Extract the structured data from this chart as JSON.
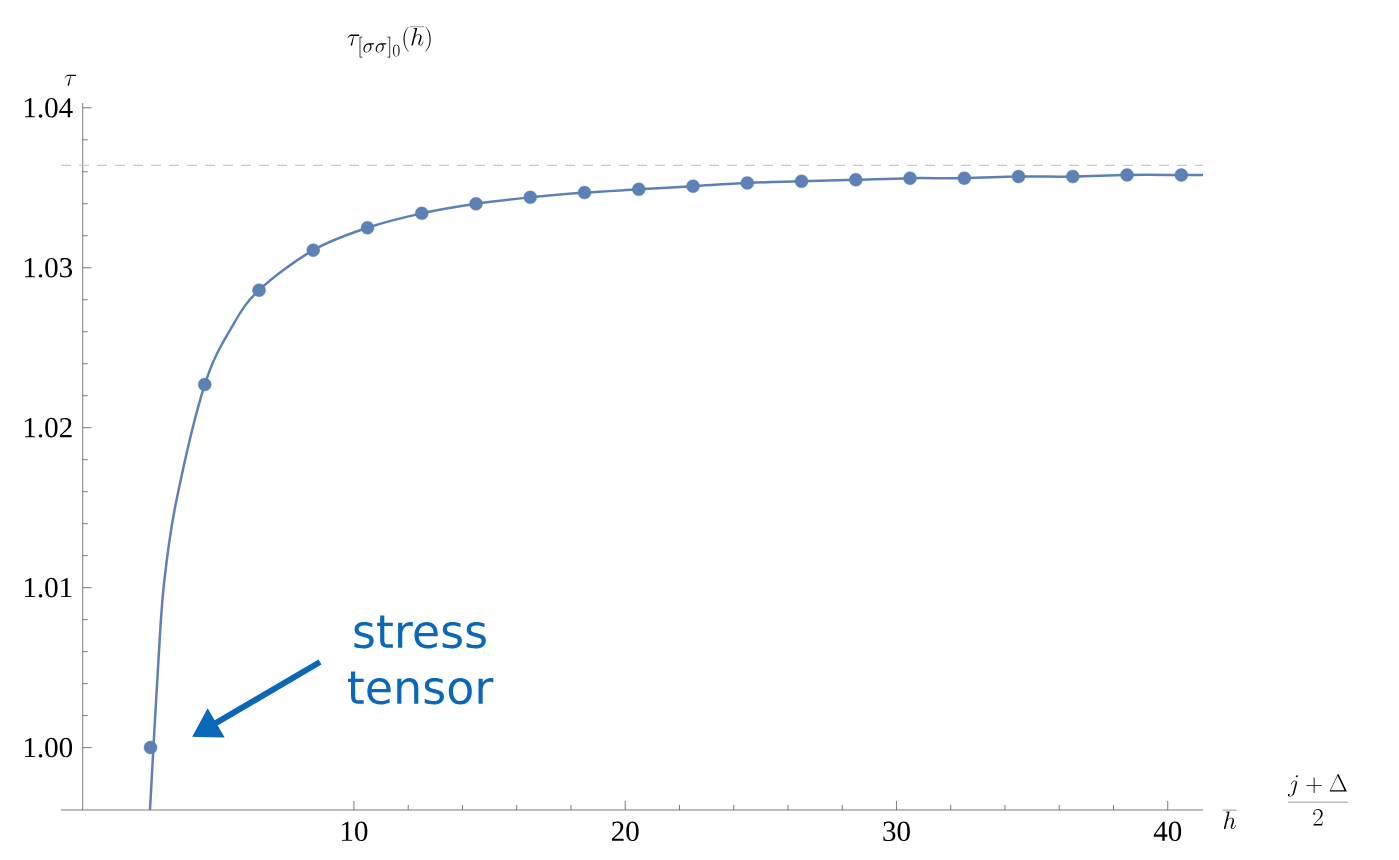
{
  "chart_data": {
    "type": "scatter",
    "title": "\\tau_{[\\sigma\\sigma]_0}(\\overline{h})",
    "ylabel": "\\tau",
    "xlabel": "\\overline{h}",
    "x2label": "\\frac{j+\\Delta}{2}",
    "annotations": [
      "stress tensor"
    ],
    "xlim": [
      -0.8,
      41.3
    ],
    "ylim": [
      0.9961,
      1.0403
    ],
    "xticks": [
      10,
      20,
      30,
      40
    ],
    "yticks": [
      {
        "value": 1.0,
        "label": "1.00"
      },
      {
        "value": 1.01,
        "label": "1.01"
      },
      {
        "value": 1.02,
        "label": "1.02"
      },
      {
        "value": 1.03,
        "label": "1.03"
      },
      {
        "value": 1.04,
        "label": "1.04"
      }
    ],
    "ref_lines": [
      {
        "axis": "y",
        "value": 1.0364,
        "color": "#cccccc",
        "line_style": "dashed"
      }
    ],
    "series": [
      {
        "type": "line",
        "color": "#5e81b5",
        "x": [
          2.48,
          2.78,
          3.0,
          3.46,
          4.5,
          5.5,
          6.5,
          8.5,
          10.5,
          12.5,
          14.5,
          16.5,
          18.5,
          20.5,
          22.5,
          24.5,
          26.5,
          28.5,
          30.5,
          32.5,
          34.5,
          36.5,
          38.5,
          40.5,
          41.3
        ],
        "values": [
          0.9961,
          1.0051,
          1.0103,
          1.0155,
          1.0227,
          1.0263,
          1.0286,
          1.0311,
          1.0325,
          1.0334,
          1.034,
          1.0344,
          1.0347,
          1.0349,
          1.0351,
          1.0353,
          1.0354,
          1.0355,
          1.0356,
          1.0356,
          1.0357,
          1.0357,
          1.0358,
          1.0358,
          1.0358
        ]
      },
      {
        "color": "#5e81b5",
        "marker": "circle",
        "x": [
          2.5,
          4.5,
          6.5,
          8.5,
          10.5,
          12.5,
          14.5,
          16.5,
          18.5,
          20.5,
          22.5,
          24.5,
          26.5,
          28.5,
          30.5,
          32.5,
          34.5,
          36.5,
          38.5,
          40.5
        ],
        "values": [
          1.0,
          1.0227,
          1.0286,
          1.0311,
          1.0325,
          1.0334,
          1.034,
          1.0344,
          1.0347,
          1.0349,
          1.0351,
          1.0353,
          1.0354,
          1.0355,
          1.0356,
          1.0356,
          1.0357,
          1.0357,
          1.0358,
          1.0358
        ]
      }
    ]
  }
}
